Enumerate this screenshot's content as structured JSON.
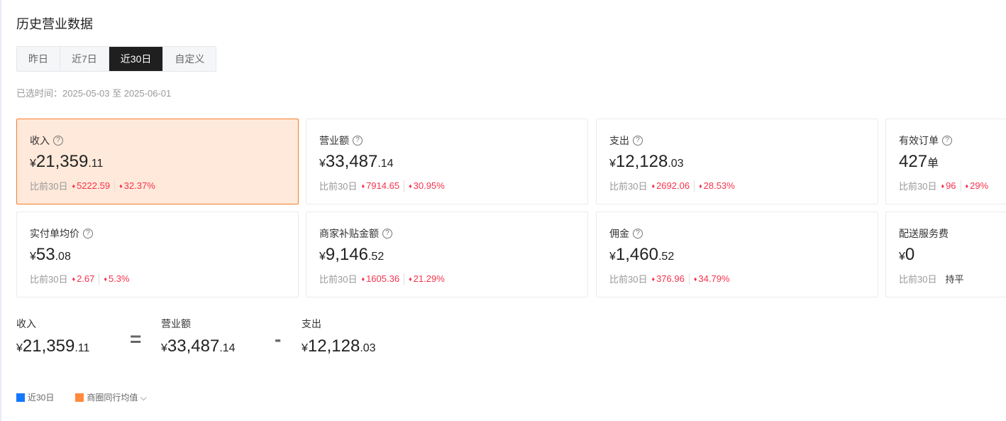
{
  "title": "历史营业数据",
  "tabs": [
    "昨日",
    "近7日",
    "近30日",
    "自定义"
  ],
  "active_tab": "近30日",
  "range": "已选时间：2025-05-03 至 2025-06-01",
  "compare_label": "比前30日",
  "cards": [
    {
      "label": "收入",
      "help": true,
      "cur": "¥",
      "int": "21,359",
      "dec": ".11",
      "diff": "5222.59",
      "pct": "32.37%"
    },
    {
      "label": "营业额",
      "help": true,
      "cur": "¥",
      "int": "33,487",
      "dec": ".14",
      "diff": "7914.65",
      "pct": "30.95%"
    },
    {
      "label": "支出",
      "help": true,
      "cur": "¥",
      "int": "12,128",
      "dec": ".03",
      "diff": "2692.06",
      "pct": "28.53%"
    },
    {
      "label": "有效订单",
      "help": true,
      "cur": "",
      "int": "427",
      "dec": "单",
      "diff": "96",
      "pct": "29%"
    },
    {
      "label": "实付单均价",
      "help": true,
      "cur": "¥",
      "int": "53",
      "dec": ".08",
      "diff": "2.67",
      "pct": "5.3%"
    },
    {
      "label": "商家补贴金额",
      "help": true,
      "cur": "¥",
      "int": "9,146",
      "dec": ".52",
      "diff": "1605.36",
      "pct": "21.29%"
    },
    {
      "label": "佣金",
      "help": true,
      "cur": "¥",
      "int": "1,460",
      "dec": ".52",
      "diff": "376.96",
      "pct": "34.79%"
    },
    {
      "label": "配送服务费",
      "help": false,
      "cur": "¥",
      "int": "0",
      "dec": "",
      "flat": "持平"
    }
  ],
  "formula": [
    {
      "label": "收入",
      "cur": "¥",
      "int": "21,359",
      "dec": ".11"
    },
    {
      "op": "="
    },
    {
      "label": "营业额",
      "cur": "¥",
      "int": "33,487",
      "dec": ".14"
    },
    {
      "op": "-"
    },
    {
      "label": "支出",
      "cur": "¥",
      "int": "12,128",
      "dec": ".03"
    }
  ],
  "legend": [
    {
      "label": "近30日",
      "color": "#1677ff"
    },
    {
      "label": "商圈同行均值",
      "color": "#ff8a3d",
      "dropdown": true
    }
  ],
  "colors": {
    "selected_bg": "#ffe9da",
    "selected_border": "#f57e28",
    "up": "#f5334d"
  }
}
